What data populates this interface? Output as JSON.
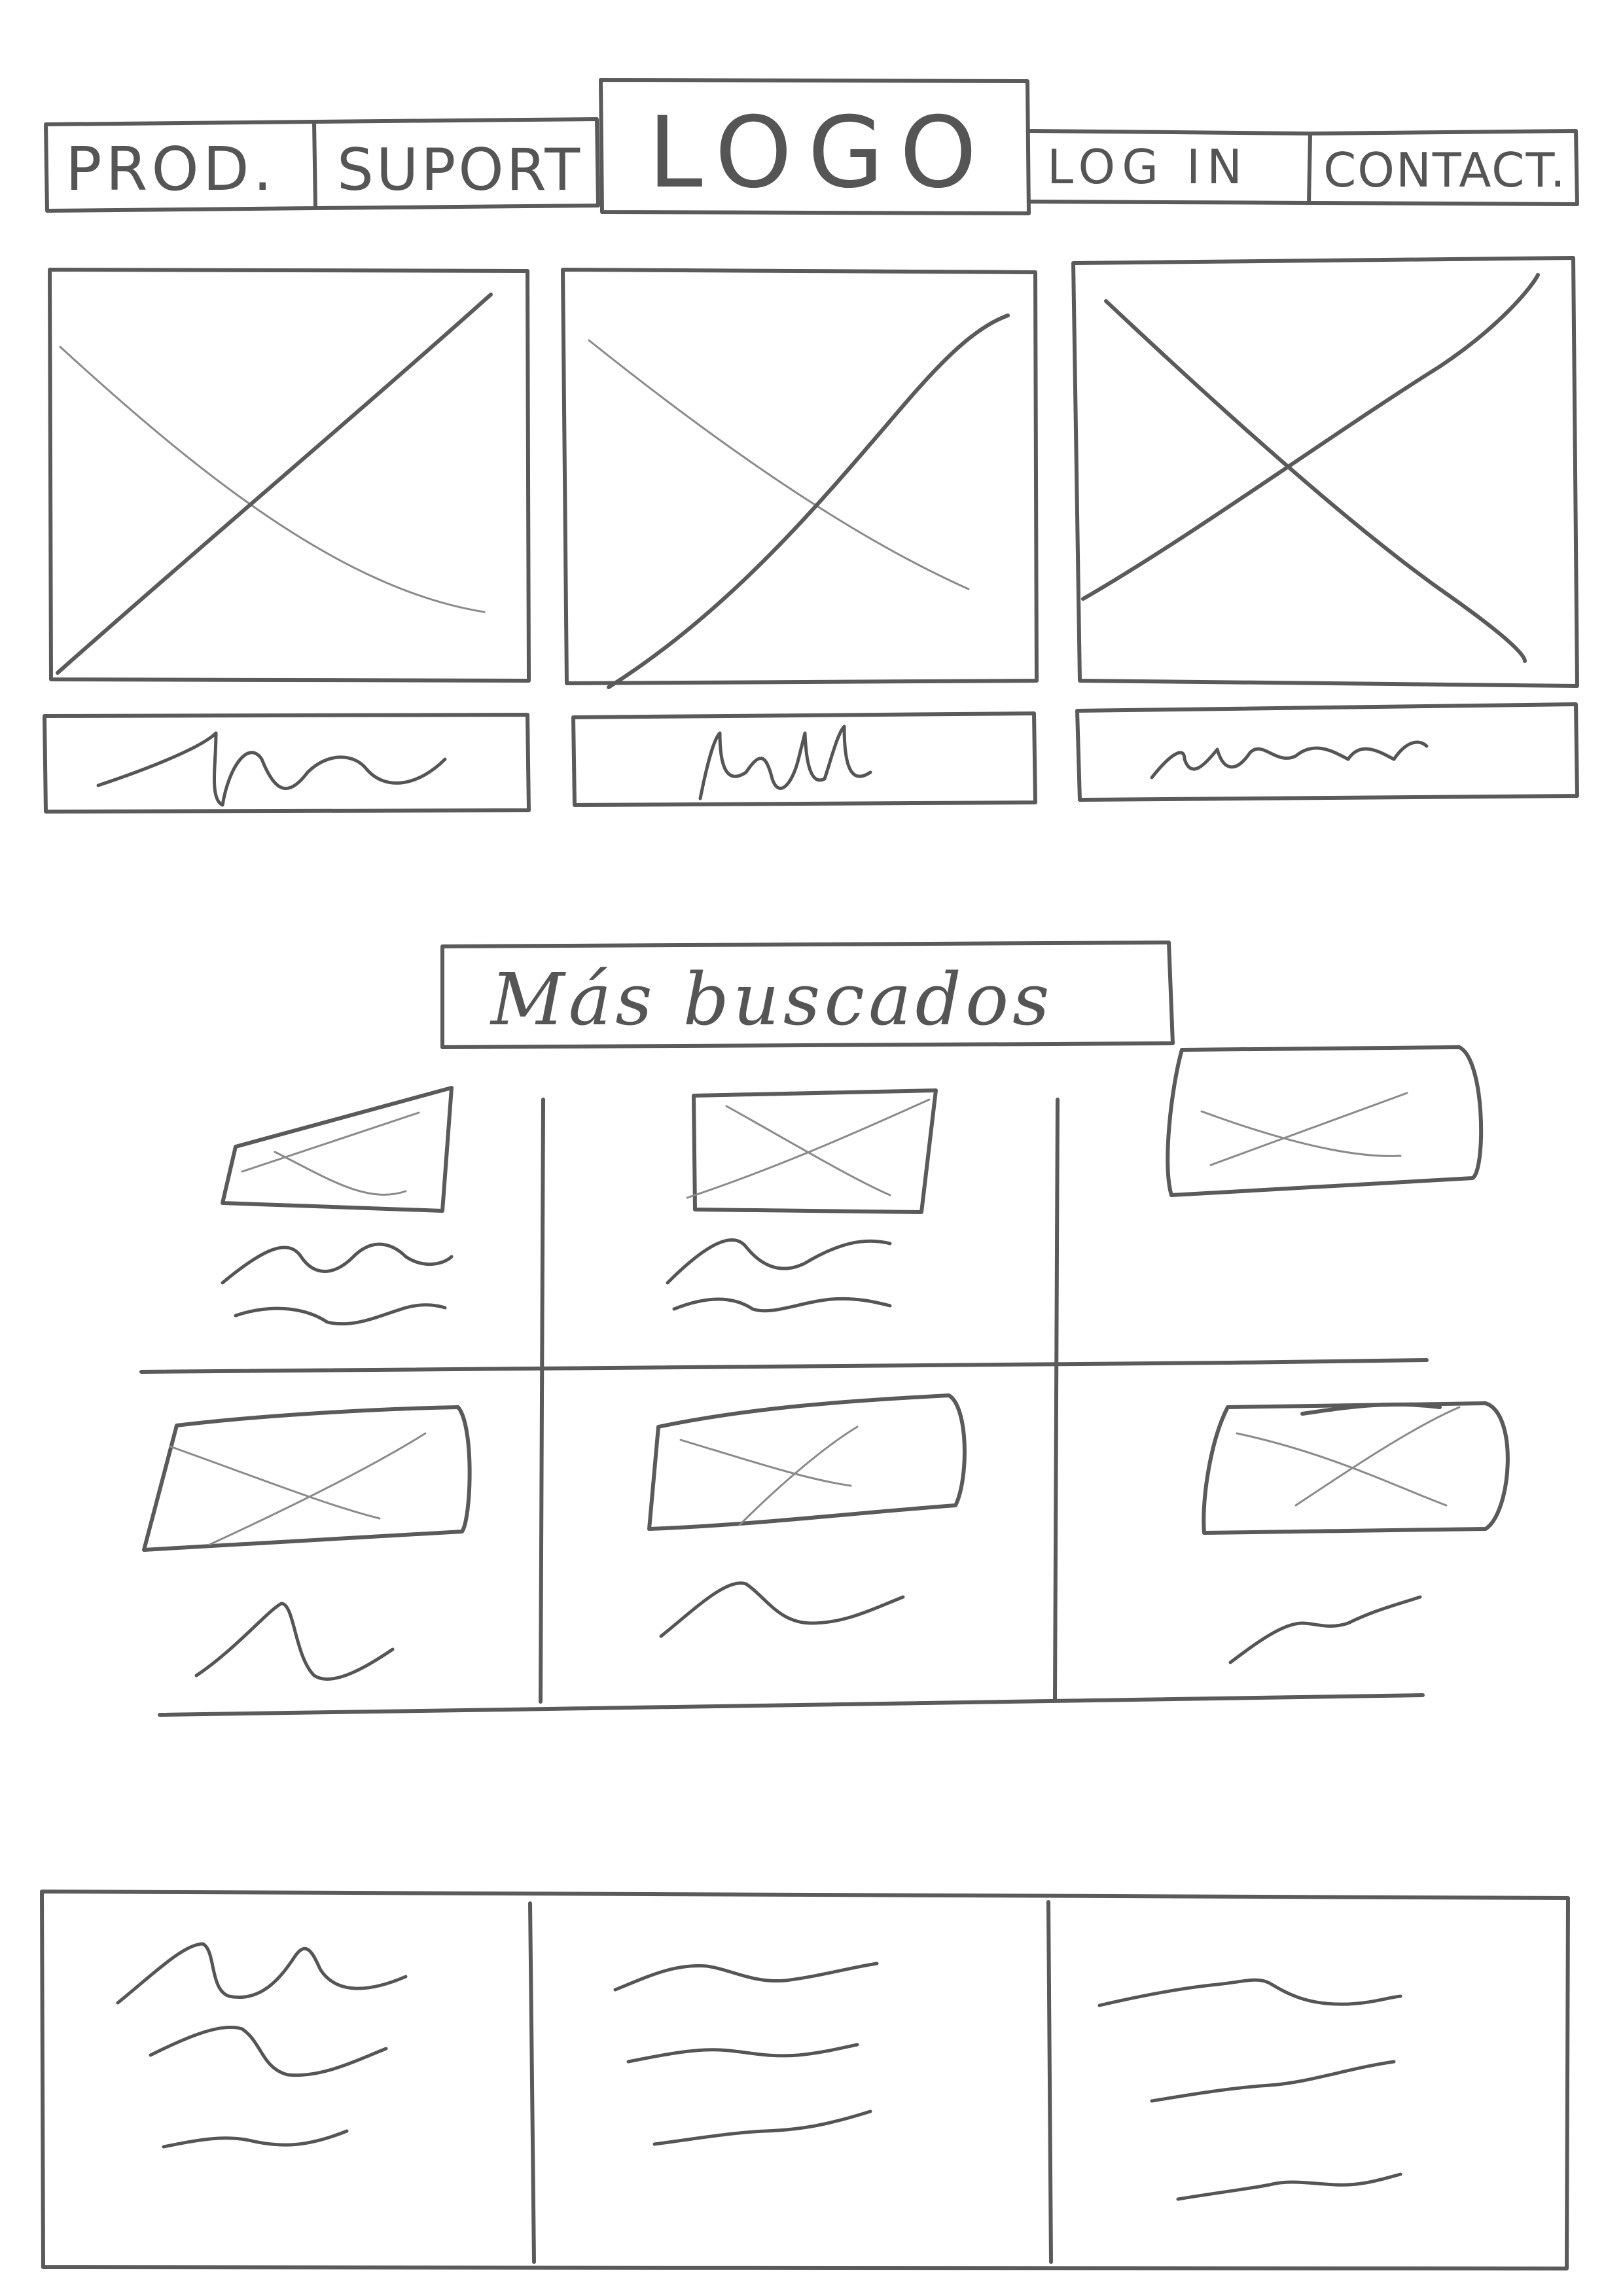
{
  "nav": {
    "left": [
      {
        "label": "PROD."
      },
      {
        "label": "SUPORT"
      }
    ],
    "logo": "LOGO",
    "right": [
      {
        "label": "LOG IN"
      },
      {
        "label": "CONTACT."
      }
    ]
  },
  "hero": {
    "cards": [
      {
        "caption_icon": "squiggle-icon"
      },
      {
        "caption_icon": "squiggle-icon"
      },
      {
        "caption_icon": "squiggle-icon"
      }
    ]
  },
  "most_searched": {
    "title": "Más buscados",
    "items": [
      {
        "image_icon": "image-placeholder-icon"
      },
      {
        "image_icon": "image-placeholder-icon"
      },
      {
        "image_icon": "image-placeholder-icon"
      },
      {
        "image_icon": "image-placeholder-icon"
      },
      {
        "image_icon": "image-placeholder-icon"
      },
      {
        "image_icon": "image-placeholder-icon"
      }
    ]
  },
  "footer": {
    "columns": 3
  },
  "colors": {
    "pencil": "#5a5a5a",
    "paper": "#ffffff"
  }
}
